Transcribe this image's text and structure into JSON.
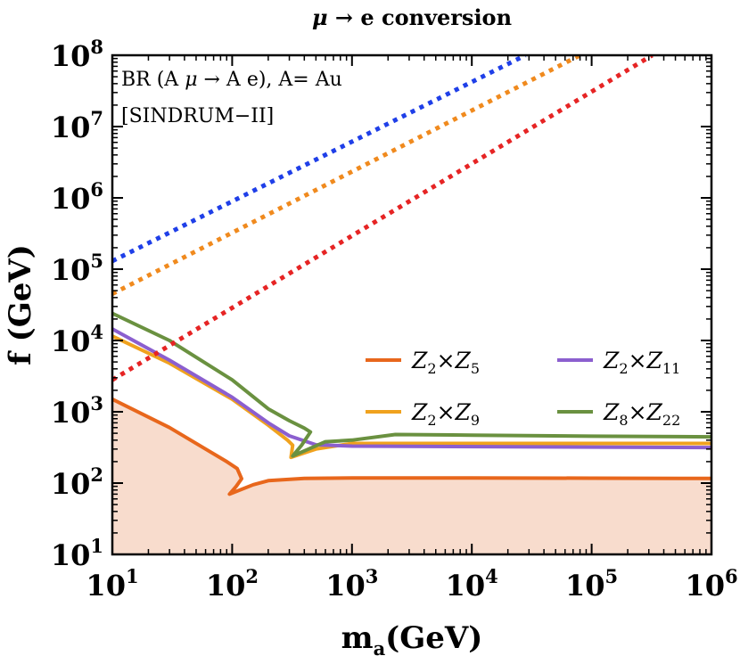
{
  "chart_data": {
    "type": "line",
    "title_parts": {
      "mu": "μ",
      "arrow": " → ",
      "rest": "e conversion"
    },
    "xlabel": {
      "main": "m",
      "sub": "a",
      "rest": "(GeV)"
    },
    "ylabel": "f (GeV)",
    "xscale": "log10",
    "yscale": "log10",
    "xlim": [
      10,
      1000000
    ],
    "ylim": [
      10,
      100000000
    ],
    "x_ticks": [
      {
        "base": "10",
        "exp": "1"
      },
      {
        "base": "10",
        "exp": "2"
      },
      {
        "base": "10",
        "exp": "3"
      },
      {
        "base": "10",
        "exp": "4"
      },
      {
        "base": "10",
        "exp": "5"
      },
      {
        "base": "10",
        "exp": "6"
      }
    ],
    "y_ticks": [
      {
        "base": "10",
        "exp": "1"
      },
      {
        "base": "10",
        "exp": "2"
      },
      {
        "base": "10",
        "exp": "3"
      },
      {
        "base": "10",
        "exp": "4"
      },
      {
        "base": "10",
        "exp": "5"
      },
      {
        "base": "10",
        "exp": "6"
      },
      {
        "base": "10",
        "exp": "7"
      },
      {
        "base": "10",
        "exp": "8"
      }
    ],
    "annotation": {
      "line1_a": "BR (A ",
      "line1_mu": "μ",
      "line1_b": " → A e), A= Au",
      "line2": "[SINDRUM−II]"
    },
    "excluded_region_color": "#f8dccd",
    "series": [
      {
        "name": "Z2×Z5",
        "legend": {
          "a": "Z",
          "a_sub": "2",
          "times": "×",
          "b": "Z",
          "b_sub": "5"
        },
        "color": "#e8671c",
        "style": "solid",
        "shaded_below": true,
        "points": [
          [
            10,
            1500
          ],
          [
            30,
            600
          ],
          [
            60,
            300
          ],
          [
            90,
            200
          ],
          [
            110,
            160
          ],
          [
            120,
            115
          ],
          [
            108,
            90
          ],
          [
            95,
            70
          ],
          [
            150,
            95
          ],
          [
            200,
            108
          ],
          [
            400,
            116
          ],
          [
            1000,
            118
          ],
          [
            10000,
            118
          ],
          [
            100000,
            117
          ],
          [
            1000000,
            116
          ]
        ]
      },
      {
        "name": "Z2×Z9",
        "legend": {
          "a": "Z",
          "a_sub": "2",
          "times": "×",
          "b": "Z",
          "b_sub": "9"
        },
        "color": "#f0a21e",
        "style": "solid",
        "shaded_below": false,
        "points": [
          [
            10,
            11500
          ],
          [
            30,
            4800
          ],
          [
            100,
            1500
          ],
          [
            200,
            650
          ],
          [
            290,
            400
          ],
          [
            320,
            340
          ],
          [
            310,
            230
          ],
          [
            500,
            300
          ],
          [
            1000,
            360
          ],
          [
            10000,
            360
          ],
          [
            1000000,
            360
          ]
        ]
      },
      {
        "name": "Z2×Z11",
        "legend": {
          "a": "Z",
          "a_sub": "2",
          "times": "×",
          "b": "Z",
          "b_sub": "11"
        },
        "color": "#8b5fcf",
        "style": "solid",
        "shaded_below": false,
        "points": [
          [
            10,
            14500
          ],
          [
            30,
            5300
          ],
          [
            100,
            1600
          ],
          [
            200,
            700
          ],
          [
            300,
            460
          ],
          [
            500,
            345
          ],
          [
            1000,
            330
          ],
          [
            100000,
            320
          ],
          [
            1000000,
            315
          ]
        ]
      },
      {
        "name": "Z8×Z22",
        "legend": {
          "a": "Z",
          "a_sub": "8",
          "times": "×",
          "b": "Z",
          "b_sub": "22"
        },
        "color": "#6a9140",
        "style": "solid",
        "shaded_below": false,
        "points": [
          [
            10,
            24000
          ],
          [
            30,
            10000
          ],
          [
            100,
            2800
          ],
          [
            200,
            1100
          ],
          [
            300,
            750
          ],
          [
            400,
            590
          ],
          [
            450,
            520
          ],
          [
            380,
            340
          ],
          [
            320,
            240
          ],
          [
            600,
            380
          ],
          [
            1000,
            400
          ],
          [
            2300,
            480
          ],
          [
            10000,
            470
          ],
          [
            100000,
            455
          ],
          [
            1000000,
            445
          ]
        ]
      },
      {
        "name": "blue dotted",
        "color": "#1f3fe8",
        "style": "dotted",
        "shaded_below": false,
        "points": [
          [
            10,
            130000
          ],
          [
            28000,
            100000000
          ]
        ]
      },
      {
        "name": "orange dotted",
        "color": "#f08a1e",
        "style": "dotted",
        "shaded_below": false,
        "points": [
          [
            10,
            45000
          ],
          [
            80000,
            100000000
          ]
        ]
      },
      {
        "name": "red dotted",
        "color": "#e62424",
        "style": "dotted",
        "shaded_below": false,
        "points": [
          [
            10,
            2800
          ],
          [
            320000,
            100000000
          ]
        ]
      }
    ],
    "legend_layout": "two-column, lower-right, order: Z2×Z5, Z2×Z11, Z2×Z9, Z8×Z22"
  }
}
